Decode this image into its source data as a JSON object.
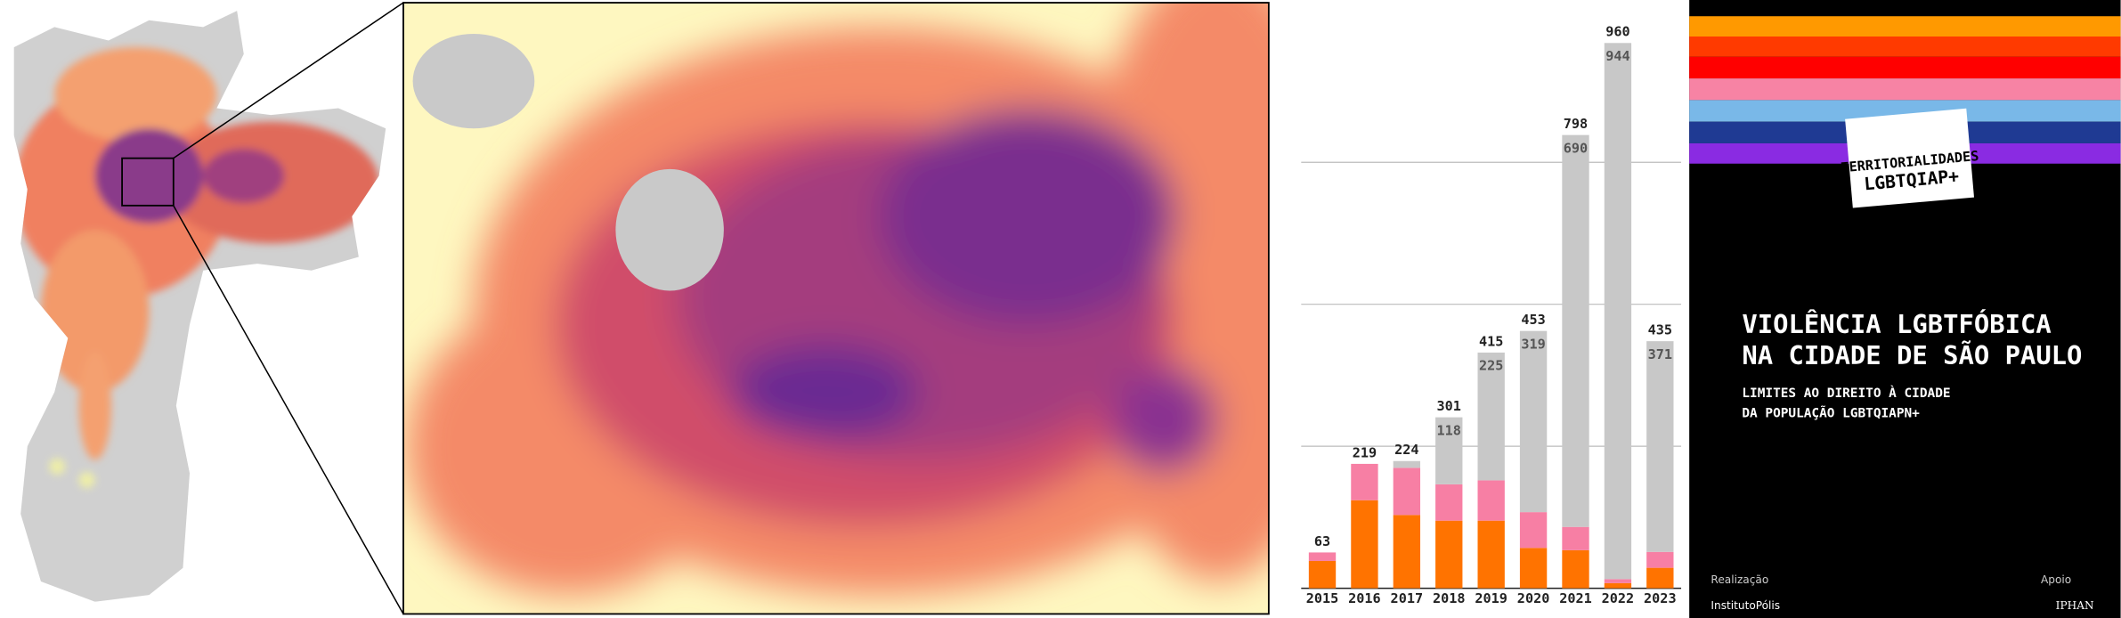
{
  "chart_data": {
    "type": "stacked-bar",
    "categories": [
      "2015",
      "2016",
      "2017",
      "2018",
      "2019",
      "2020",
      "2021",
      "2022",
      "2023"
    ],
    "series": [
      {
        "color": "#ff7300",
        "values": [
          48,
          155,
          129,
          119,
          119,
          71,
          67,
          9,
          36
        ]
      },
      {
        "color": "#f77fa4",
        "values": [
          15,
          64,
          83,
          64,
          71,
          63,
          41,
          7,
          28
        ]
      },
      {
        "color": "#c8c8c8",
        "values": [
          0,
          0,
          12,
          118,
          225,
          319,
          690,
          944,
          371
        ]
      }
    ],
    "totals": [
      63,
      219,
      224,
      301,
      415,
      453,
      798,
      960,
      435
    ],
    "ylim": [
      0,
      1000
    ],
    "yticks": [
      250,
      500,
      750
    ],
    "grid": true
  },
  "cover": {
    "badge": [
      "TERRITORIALIDADES",
      "LGBTQIAP+"
    ],
    "title": [
      "VIOLÊNCIA LGBTFÓBICA",
      "NA CIDADE DE SÃO PAULO"
    ],
    "subtitle": [
      "LIMITES AO DIREITO À CIDADE",
      "DA POPULAÇÃO LGBTQIAPN+"
    ],
    "left_label": "Realização",
    "right_label": "Apoio",
    "left_logo": "InstitutoPólis",
    "right_logo": "IPHAN"
  }
}
